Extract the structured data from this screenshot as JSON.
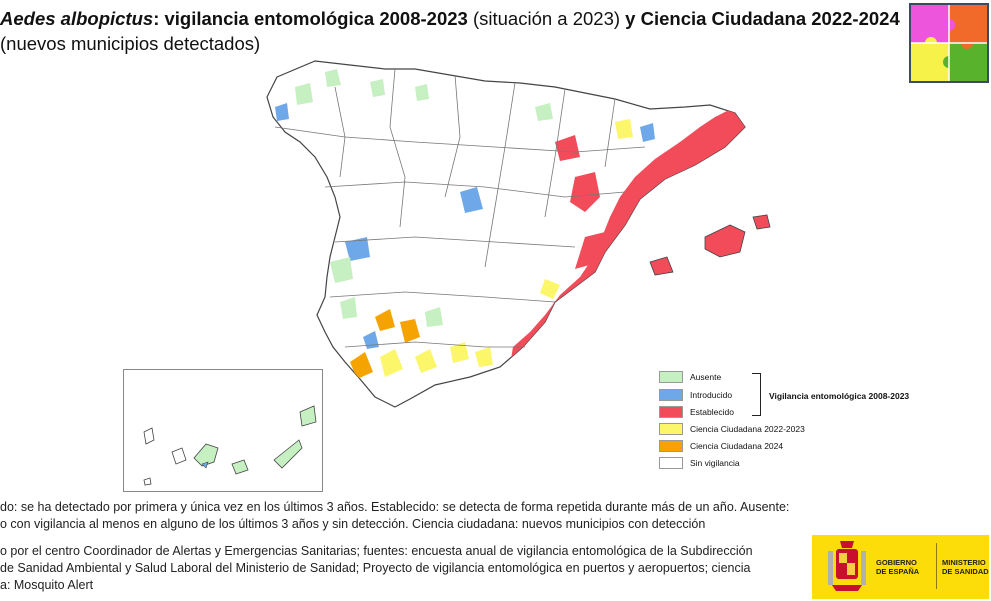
{
  "title": {
    "species": "Aedes albopictus",
    "part1": ": vigilancia entomológica 2008-2023 ",
    "part2": "(situación a 2023) ",
    "part3": "y Ciencia Ciudadana 2022-2024",
    "line2": "(nuevos municipios detectados)"
  },
  "legend": {
    "items": [
      {
        "label": "Ausente",
        "color": "#c6f0c2"
      },
      {
        "label": "Introducido",
        "color": "#6fa8e8"
      },
      {
        "label": "Establecido",
        "color": "#f24b5a"
      },
      {
        "label": "Ciencia Ciudadana 2022-2023",
        "color": "#fbf66a"
      },
      {
        "label": "Ciencia Ciudadana 2024",
        "color": "#f5a300"
      },
      {
        "label": "Sin vigilancia",
        "color": "#ffffff"
      }
    ],
    "group_label": "Vigilancia entomológica 2008-2023"
  },
  "notes": {
    "line1": "do: se ha detectado por primera y única vez en los últimos 3 años. Establecido: se detecta de forma repetida durante más de un año. Ausente:",
    "line2": "o con vigilancia al menos en alguno de los últimos 3 años y sin detección. Ciencia ciudadana: nuevos municipios con detección"
  },
  "sources": {
    "line1": "o por el centro Coordinador de Alertas y Emergencias Sanitarias; fuentes: encuesta anual de vigilancia entomológica de la Subdirección",
    "line2": "de Sanidad Ambiental y Salud Laboral del Ministerio de Sanidad; Proyecto de vigilancia entomológica en puertos y aeropuertos; ciencia",
    "line3": "a: Mosquito Alert"
  },
  "gov_logo": {
    "gobierno_l1": "GOBIERNO",
    "gobierno_l2": "DE ESPAÑA",
    "ministerio_l1": "MINISTERIO",
    "ministerio_l2": "DE SANIDAD",
    "color": "#fcdd09"
  },
  "puzzle_logo": {
    "colors": [
      "#ee55dd",
      "#f26a2a",
      "#f6f24a",
      "#58b22c"
    ]
  },
  "map": {
    "colors": {
      "ausente": "#c6f0c2",
      "introducido": "#6fa8e8",
      "establecido": "#f24b5a",
      "cc2022": "#fbf66a",
      "cc2024": "#f5a300",
      "border": "#555555"
    }
  }
}
